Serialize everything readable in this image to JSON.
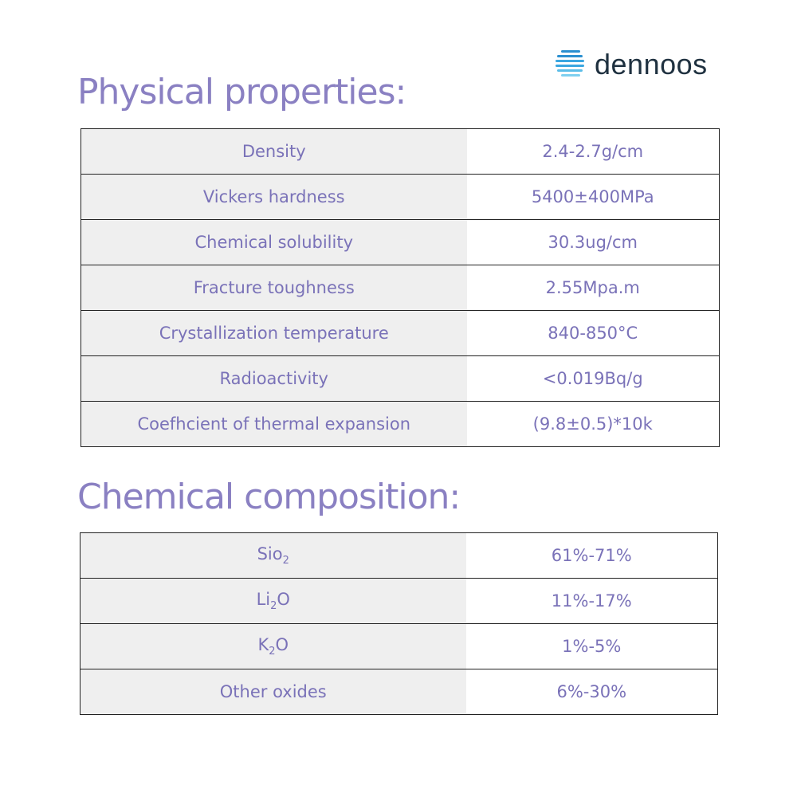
{
  "logo": {
    "text": "dennoos"
  },
  "physical": {
    "title": "Physical properties:",
    "rows": [
      [
        "Density",
        "2.4-2.7g/cm"
      ],
      [
        "Vickers hardness",
        "5400±400MPa"
      ],
      [
        "Chemical solubility",
        "30.3ug/cm"
      ],
      [
        "Fracture toughness",
        "2.55Mpa.m"
      ],
      [
        "Crystallization temperature",
        "840-850°C"
      ],
      [
        "Radioactivity",
        "<0.019Bq/g"
      ],
      [
        "Coefhcient of thermal expansion",
        "(9.8±0.5)*10k"
      ]
    ]
  },
  "chemical": {
    "title": "Chemical composition:",
    "rows": [
      {
        "name": [
          "Sio",
          "2"
        ],
        "value": "61%-71%"
      },
      {
        "name": [
          "Li",
          "2",
          "O"
        ],
        "value": "11%-17%"
      },
      {
        "name": [
          "K",
          "2",
          "O"
        ],
        "value": "1%-5%"
      },
      {
        "name": [
          "Other oxides"
        ],
        "value": "6%-30%"
      }
    ]
  }
}
